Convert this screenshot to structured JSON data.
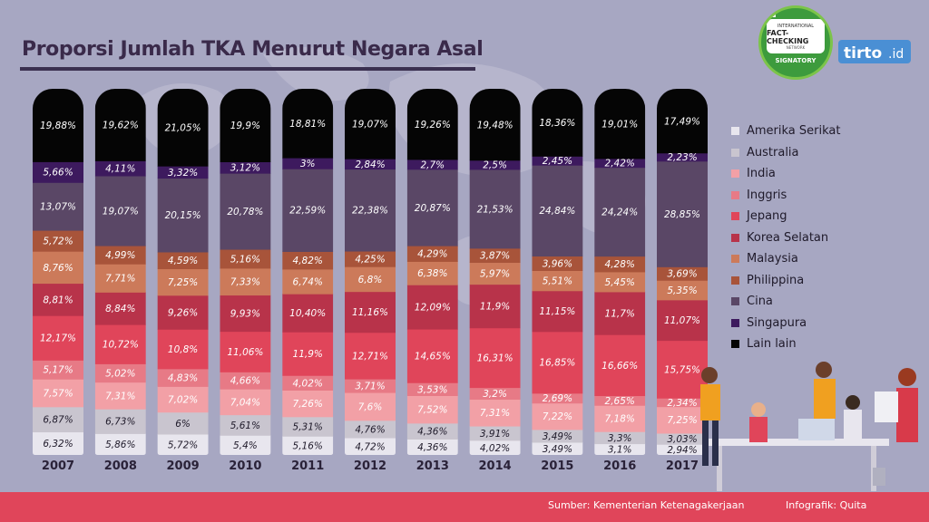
{
  "header": {
    "title": "Proporsi Jumlah TKA Menurut Negara Asal"
  },
  "badge": {
    "top_text": "INTERNATIONAL",
    "main_text": "FACT-CHECKING",
    "sub_text": "NETWORK",
    "signatory": "SIGNATORY"
  },
  "logo": {
    "text": "tirto",
    "suffix": ".id"
  },
  "footer": {
    "source": "Sumber: Kementerian Ketenagakerjaan",
    "credit": "Infografik: Quita"
  },
  "colors": {
    "background": "#a7a7c2",
    "title": "#3a2a4a",
    "footer": "#e0455a",
    "logo_bg": "#4a8fd4"
  },
  "icons": [
    "fact-checking-badge-icon",
    "tirto-logo-icon",
    "office-people-illustration-icon",
    "world-map-background-icon"
  ],
  "chart_data": {
    "type": "bar",
    "stacked": true,
    "percent_format": "comma-decimal",
    "categories": [
      "2007",
      "2008",
      "2009",
      "2010",
      "2011",
      "2012",
      "2013",
      "2014",
      "2015",
      "2016",
      "2017"
    ],
    "legend_position": "right",
    "series": [
      {
        "name": "Amerika Serikat",
        "color": "#e8e6ee",
        "values": [
          6.32,
          5.86,
          5.72,
          5.4,
          5.16,
          4.72,
          4.36,
          4.02,
          3.49,
          3.1,
          2.94
        ],
        "labels": [
          "6,32%",
          "5,86%",
          "5,72%",
          "5,4%",
          "5,16%",
          "4,72%",
          "4,36%",
          "4,02%",
          "3,49%",
          "3,1%",
          "2,94%"
        ]
      },
      {
        "name": "Australia",
        "color": "#c9c5cf",
        "values": [
          6.87,
          6.73,
          6.0,
          5.61,
          5.31,
          4.76,
          4.36,
          3.91,
          3.49,
          3.3,
          3.03
        ],
        "labels": [
          "6,87%",
          "6,73%",
          "6%",
          "5,61%",
          "5,31%",
          "4,76%",
          "4,36%",
          "3,91%",
          "3,49%",
          "3,3%",
          "3,03%"
        ]
      },
      {
        "name": "India",
        "color": "#f2a0a6",
        "values": [
          7.57,
          7.31,
          7.02,
          7.04,
          7.26,
          7.6,
          7.52,
          7.31,
          7.22,
          7.18,
          7.25
        ],
        "labels": [
          "7,57%",
          "7,31%",
          "7,02%",
          "7,04%",
          "7,26%",
          "7,6%",
          "7,52%",
          "7,31%",
          "7,22%",
          "7,18%",
          "7,25%"
        ]
      },
      {
        "name": "Inggris",
        "color": "#e77a86",
        "values": [
          5.17,
          5.02,
          4.83,
          4.66,
          4.02,
          3.71,
          3.53,
          3.2,
          2.69,
          2.65,
          2.34
        ],
        "labels": [
          "5,17%",
          "5,02%",
          "4,83%",
          "4,66%",
          "4,02%",
          "3,71%",
          "3,53%",
          "3,2%",
          "2,69%",
          "2,65%",
          "2,34%"
        ]
      },
      {
        "name": "Jepang",
        "color": "#e0455a",
        "values": [
          12.17,
          10.72,
          10.8,
          11.06,
          11.9,
          12.71,
          14.65,
          16.31,
          16.85,
          16.66,
          15.75
        ],
        "labels": [
          "12,17%",
          "10,72%",
          "10,8%",
          "11,06%",
          "11,9%",
          "12,71%",
          "14,65%",
          "16,31%",
          "16,85%",
          "16,66%",
          "15,75%"
        ]
      },
      {
        "name": "Korea Selatan",
        "color": "#b8334a",
        "values": [
          8.81,
          8.84,
          9.26,
          9.93,
          10.4,
          11.16,
          12.09,
          11.9,
          11.15,
          11.7,
          11.07
        ],
        "labels": [
          "8,81%",
          "8,84%",
          "9,26%",
          "9,93%",
          "10,40%",
          "11,16%",
          "12,09%",
          "11,9%",
          "11,15%",
          "11,7%",
          "11,07%"
        ]
      },
      {
        "name": "Malaysia",
        "color": "#cc7a5a",
        "values": [
          8.76,
          7.71,
          7.25,
          7.33,
          6.74,
          6.8,
          6.38,
          5.97,
          5.51,
          5.45,
          5.35
        ],
        "labels": [
          "8,76%",
          "7,71%",
          "7,25%",
          "7,33%",
          "6,74%",
          "6,8%",
          "6,38%",
          "5,97%",
          "5,51%",
          "5,45%",
          "5,35%"
        ]
      },
      {
        "name": "Philippina",
        "color": "#a8543a",
        "values": [
          5.72,
          4.99,
          4.59,
          5.16,
          4.82,
          4.25,
          4.29,
          3.87,
          3.96,
          4.28,
          3.69
        ],
        "labels": [
          "5,72%",
          "4,99%",
          "4,59%",
          "5,16%",
          "4,82%",
          "4,25%",
          "4,29%",
          "3,87%",
          "3,96%",
          "4,28%",
          "3,69%"
        ]
      },
      {
        "name": "Cina",
        "color": "#5a4766",
        "values": [
          13.07,
          19.07,
          20.15,
          20.78,
          22.59,
          22.38,
          20.87,
          21.53,
          24.84,
          24.24,
          28.85
        ],
        "labels": [
          "13,07%",
          "19,07%",
          "20,15%",
          "20,78%",
          "22,59%",
          "22,38%",
          "20,87%",
          "21,53%",
          "24,84%",
          "24,24%",
          "28,85%"
        ]
      },
      {
        "name": "Singapura",
        "color": "#3d1a5e",
        "values": [
          5.66,
          4.11,
          3.32,
          3.12,
          3.0,
          2.84,
          2.7,
          2.5,
          2.45,
          2.42,
          2.23
        ],
        "labels": [
          "5,66%",
          "4,11%",
          "3,32%",
          "3,12%",
          "3%",
          "2,84%",
          "2,7%",
          "2,5%",
          "2,45%",
          "2,42%",
          "2,23%"
        ]
      },
      {
        "name": "Lain lain",
        "color": "#050505",
        "values": [
          19.88,
          19.62,
          21.05,
          19.9,
          18.81,
          19.07,
          19.26,
          19.48,
          18.36,
          19.01,
          17.49
        ],
        "labels": [
          "19,88%",
          "19,62%",
          "21,05%",
          "19,9%",
          "18,81%",
          "19,07%",
          "19,26%",
          "19,48%",
          "18,36%",
          "19,01%",
          "17,49%"
        ]
      }
    ]
  }
}
